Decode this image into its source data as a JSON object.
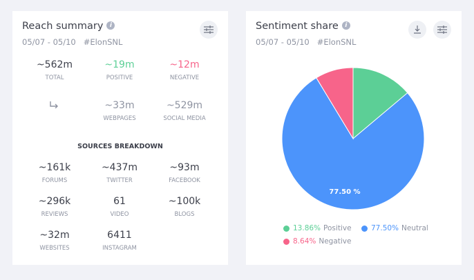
{
  "reach": {
    "title": "Reach summary",
    "subtitle": "05/07 - 05/10   #ElonSNL",
    "top": [
      {
        "value": "~562m",
        "label": "TOTAL",
        "color": "#3c3f4a"
      },
      {
        "value": "~19m",
        "label": "POSITIVE",
        "color": "#5ccf96"
      },
      {
        "value": "~12m",
        "label": "NEGATIVE",
        "color": "#f7648a"
      }
    ],
    "split": [
      {
        "value": "~33m",
        "label": "WEBPAGES"
      },
      {
        "value": "~529m",
        "label": "SOCIAL MEDIA"
      }
    ],
    "sources_title": "SOURCES BREAKDOWN",
    "sources": [
      {
        "value": "~161k",
        "label": "FORUMS"
      },
      {
        "value": "~437m",
        "label": "TWITTER"
      },
      {
        "value": "~93m",
        "label": "FACEBOOK"
      },
      {
        "value": "~296k",
        "label": "REVIEWS"
      },
      {
        "value": "61",
        "label": "VIDEO"
      },
      {
        "value": "~100k",
        "label": "BLOGS"
      },
      {
        "value": "~32m",
        "label": "WEBSITES"
      },
      {
        "value": "6411",
        "label": "INSTAGRAM"
      }
    ]
  },
  "sentiment": {
    "title": "Sentiment share",
    "subtitle": "05/07 - 05/10   #ElonSNL",
    "chart_data": {
      "type": "pie",
      "slices": [
        {
          "name": "Positive",
          "value": 13.86,
          "color": "#5ccf96",
          "pct": "13.86%"
        },
        {
          "name": "Neutral",
          "value": 77.5,
          "color": "#4c94fb",
          "pct": "77.50%"
        },
        {
          "name": "Negative",
          "value": 8.64,
          "color": "#f7648a",
          "pct": "8.64%"
        }
      ],
      "data_label": "77.50 %",
      "legend": "bottom"
    }
  }
}
